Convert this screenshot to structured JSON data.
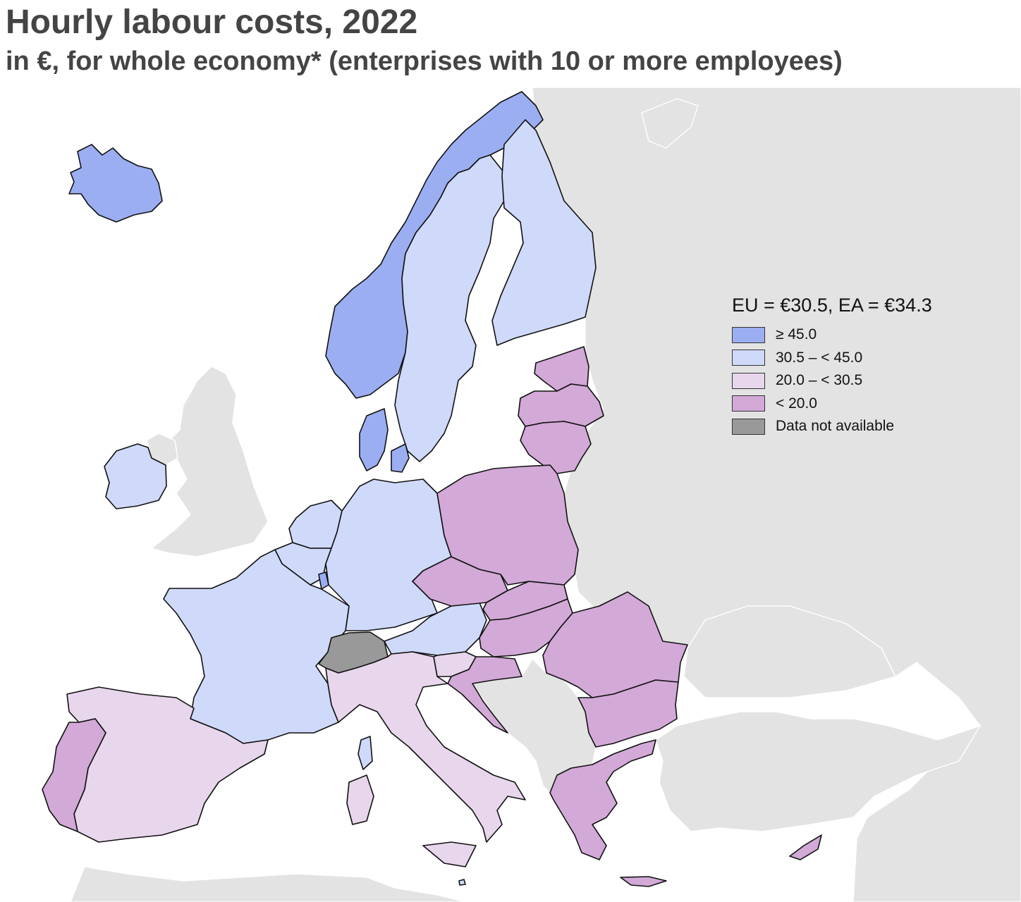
{
  "header": {
    "title": "Hourly labour costs, 2022",
    "subtitle": "in €, for whole economy* (enterprises with 10 or more employees)"
  },
  "legend": {
    "title": "EU = €30.5, EA = €34.3",
    "classes": [
      {
        "label": "≥ 45.0",
        "color": "#9caef2"
      },
      {
        "label": "30.5 – < 45.0",
        "color": "#cfd9fa"
      },
      {
        "label": "20.0 – < 30.5",
        "color": "#e8d6ec"
      },
      {
        "label": "< 20.0",
        "color": "#d3a9d8"
      },
      {
        "label": "Data not available",
        "color": "#999999"
      }
    ]
  },
  "map": {
    "background_color": "#ffffff",
    "non_member_color": "#e3e3e3",
    "countries": [
      {
        "name": "Iceland",
        "class": 0
      },
      {
        "name": "Norway",
        "class": 0
      },
      {
        "name": "Denmark",
        "class": 0
      },
      {
        "name": "Luxembourg",
        "class": 0
      },
      {
        "name": "Sweden",
        "class": 1
      },
      {
        "name": "Finland",
        "class": 1
      },
      {
        "name": "Ireland",
        "class": 1
      },
      {
        "name": "Netherlands",
        "class": 1
      },
      {
        "name": "Belgium",
        "class": 1
      },
      {
        "name": "France",
        "class": 1
      },
      {
        "name": "Germany",
        "class": 1
      },
      {
        "name": "Austria",
        "class": 1
      },
      {
        "name": "Malta",
        "class": 1
      },
      {
        "name": "Spain",
        "class": 2
      },
      {
        "name": "Italy",
        "class": 2
      },
      {
        "name": "Slovenia",
        "class": 2
      },
      {
        "name": "Portugal",
        "class": 3
      },
      {
        "name": "Estonia",
        "class": 3
      },
      {
        "name": "Latvia",
        "class": 3
      },
      {
        "name": "Lithuania",
        "class": 3
      },
      {
        "name": "Poland",
        "class": 3
      },
      {
        "name": "Czechia",
        "class": 3
      },
      {
        "name": "Slovakia",
        "class": 3
      },
      {
        "name": "Hungary",
        "class": 3
      },
      {
        "name": "Croatia",
        "class": 3
      },
      {
        "name": "Romania",
        "class": 3
      },
      {
        "name": "Bulgaria",
        "class": 3
      },
      {
        "name": "Greece",
        "class": 3
      },
      {
        "name": "Cyprus",
        "class": 3
      },
      {
        "name": "Switzerland",
        "class": 4
      }
    ]
  }
}
